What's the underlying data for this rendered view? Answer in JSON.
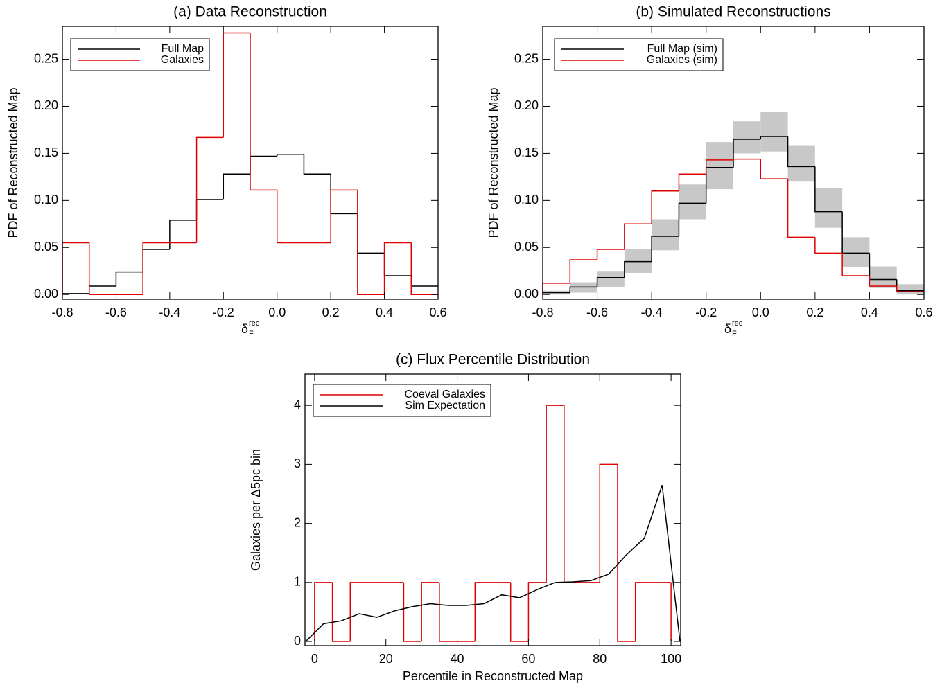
{
  "chart_data": [
    {
      "type": "histogram",
      "title": "(a) Data Reconstruction",
      "x_label": {
        "symbol": "δ",
        "sub": "F",
        "sup": "rec"
      },
      "y_label": "PDF of Reconstructed Map",
      "bins": [
        -0.8,
        -0.7,
        -0.6,
        -0.5,
        -0.4,
        -0.3,
        -0.2,
        -0.1,
        0.0,
        0.1,
        0.2,
        0.3,
        0.4,
        0.5,
        0.6
      ],
      "series": [
        {
          "name": "Full Map",
          "color": "#000000",
          "values": [
            0.001,
            0.009,
            0.024,
            0.048,
            0.079,
            0.101,
            0.128,
            0.147,
            0.149,
            0.128,
            0.086,
            0.044,
            0.02,
            0.009
          ]
        },
        {
          "name": "Galaxies",
          "color": "#e00000",
          "values": [
            0.055,
            0,
            0,
            0.055,
            0.055,
            0.167,
            0.278,
            0.111,
            0.055,
            0.055,
            0.111,
            0,
            0.055,
            0
          ]
        }
      ],
      "xlim": [
        -0.8,
        0.6
      ],
      "ylim": [
        -0.005,
        0.285
      ],
      "xticks": [
        -0.8,
        -0.6,
        -0.4,
        -0.2,
        {
          "value": 0,
          "label": "0.0"
        },
        0.2,
        0.4,
        0.6
      ],
      "yticks": [
        {
          "value": 0,
          "label": "0.00"
        },
        {
          "value": 0.05,
          "label": "0.05"
        },
        {
          "value": 0.1,
          "label": "0.10"
        },
        {
          "value": 0.15,
          "label": "0.15"
        },
        {
          "value": 0.2,
          "label": "0.20"
        },
        {
          "value": 0.25,
          "label": "0.25"
        }
      ]
    },
    {
      "type": "histogram",
      "title": "(b) Simulated Reconstructions",
      "x_label": {
        "symbol": "δ",
        "sub": "F",
        "sup": "rec"
      },
      "y_label": "PDF of Reconstructed Map",
      "bins": [
        -0.8,
        -0.7,
        -0.6,
        -0.5,
        -0.4,
        -0.3,
        -0.2,
        -0.1,
        0.0,
        0.1,
        0.2,
        0.3,
        0.4,
        0.5,
        0.6
      ],
      "band": {
        "color": "#c8c8c8",
        "lower": [
          0,
          0.002,
          0.008,
          0.023,
          0.047,
          0.08,
          0.112,
          0.15,
          0.152,
          0.12,
          0.071,
          0.029,
          0.007,
          0
        ],
        "upper": [
          0.004,
          0.013,
          0.025,
          0.048,
          0.08,
          0.117,
          0.162,
          0.184,
          0.194,
          0.158,
          0.113,
          0.061,
          0.03,
          0.011
        ]
      },
      "series": [
        {
          "name": "Full Map (sim)",
          "color": "#000000",
          "values": [
            0.002,
            0.008,
            0.018,
            0.035,
            0.062,
            0.097,
            0.135,
            0.165,
            0.168,
            0.136,
            0.088,
            0.044,
            0.016,
            0.004
          ]
        },
        {
          "name": "Galaxies (sim)",
          "color": "#e00000",
          "values": [
            0.012,
            0.037,
            0.048,
            0.075,
            0.11,
            0.128,
            0.143,
            0.144,
            0.123,
            0.061,
            0.044,
            0.02,
            0.009,
            0.003
          ]
        }
      ],
      "xlim": [
        -0.8,
        0.6
      ],
      "ylim": [
        -0.005,
        0.285
      ],
      "xticks": [
        -0.8,
        -0.6,
        -0.4,
        -0.2,
        {
          "value": 0,
          "label": "0.0"
        },
        0.2,
        0.4,
        0.6
      ],
      "yticks": [
        {
          "value": 0,
          "label": "0.00"
        },
        {
          "value": 0.05,
          "label": "0.05"
        },
        {
          "value": 0.1,
          "label": "0.10"
        },
        {
          "value": 0.15,
          "label": "0.15"
        },
        {
          "value": 0.2,
          "label": "0.20"
        },
        {
          "value": 0.25,
          "label": "0.25"
        }
      ]
    },
    {
      "type": "histogram",
      "title": "(c) Flux Percentile Distribution",
      "x_label": "Percentile in Reconstructed Map",
      "y_label": "Galaxies per Δ5pc bin",
      "bins": [
        0,
        5,
        10,
        15,
        20,
        25,
        30,
        35,
        40,
        45,
        50,
        55,
        60,
        65,
        70,
        75,
        80,
        85,
        90,
        95,
        100
      ],
      "series": [
        {
          "name": "Coeval Galaxies",
          "color": "#e00000",
          "values": [
            1,
            0,
            1,
            1,
            1,
            0,
            1,
            0,
            0,
            1,
            1,
            0,
            1,
            4,
            1,
            1,
            3,
            0,
            1,
            1
          ]
        },
        {
          "name": "Sim Expectation",
          "color": "#000000",
          "type": "line",
          "x": [
            -2.5,
            2.5,
            7.5,
            12.5,
            17.5,
            22.5,
            27.5,
            32.5,
            37.5,
            42.5,
            47.5,
            52.5,
            57.5,
            62.5,
            67.5,
            72.5,
            77.5,
            82.5,
            87.5,
            92.5,
            97.5,
            102.5
          ],
          "values": [
            0,
            0.3,
            0.35,
            0.47,
            0.41,
            0.52,
            0.59,
            0.64,
            0.61,
            0.61,
            0.64,
            0.79,
            0.74,
            0.88,
            1.0,
            1.01,
            1.03,
            1.14,
            1.47,
            1.75,
            2.65,
            0
          ]
        }
      ],
      "xlim": [
        -2.7,
        102.7
      ],
      "ylim": [
        -0.07,
        4.53
      ],
      "xticks": [
        0,
        20,
        40,
        60,
        80,
        100
      ],
      "yticks": [
        0,
        1,
        2,
        3,
        4
      ]
    }
  ]
}
